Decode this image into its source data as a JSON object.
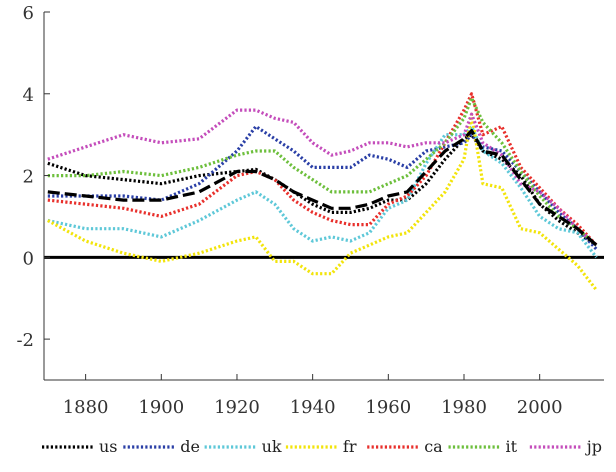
{
  "chart_data": {
    "type": "line",
    "title": "",
    "xlabel": "",
    "ylabel": "",
    "xlim": [
      1869,
      2017
    ],
    "ylim": [
      -3,
      6
    ],
    "xticks": [
      1880,
      1900,
      1920,
      1940,
      1960,
      1980,
      2000
    ],
    "yticks": [
      -2,
      0,
      2,
      4,
      6
    ],
    "grid": false,
    "legend_position": "bottom",
    "zero_line": true,
    "series": [
      {
        "name": "us",
        "color": "#000000",
        "x": [
          1870,
          1880,
          1890,
          1900,
          1910,
          1920,
          1925,
          1930,
          1935,
          1940,
          1945,
          1950,
          1955,
          1960,
          1965,
          1970,
          1975,
          1980,
          1982,
          1985,
          1990,
          1995,
          2000,
          2005,
          2010,
          2015
        ],
        "y": [
          2.3,
          2.0,
          1.9,
          1.8,
          2.0,
          2.1,
          2.15,
          1.9,
          1.6,
          1.3,
          1.1,
          1.1,
          1.2,
          1.4,
          1.4,
          1.8,
          2.4,
          2.9,
          3.0,
          2.6,
          2.4,
          2.0,
          1.3,
          0.9,
          0.6,
          0.3
        ]
      },
      {
        "name": "de",
        "color": "#2a3fa6",
        "x": [
          1870,
          1880,
          1890,
          1900,
          1910,
          1920,
          1925,
          1930,
          1935,
          1940,
          1945,
          1950,
          1955,
          1960,
          1965,
          1970,
          1975,
          1980,
          1982,
          1985,
          1990,
          1995,
          2000,
          2005,
          2010,
          2015
        ],
        "y": [
          1.5,
          1.5,
          1.5,
          1.4,
          1.8,
          2.6,
          3.2,
          2.9,
          2.6,
          2.2,
          2.2,
          2.2,
          2.5,
          2.4,
          2.2,
          2.6,
          2.7,
          2.8,
          3.0,
          2.7,
          2.6,
          2.1,
          1.6,
          1.1,
          0.7,
          0.2
        ]
      },
      {
        "name": "uk",
        "color": "#5ec8d8",
        "x": [
          1870,
          1880,
          1890,
          1900,
          1910,
          1920,
          1925,
          1930,
          1935,
          1940,
          1945,
          1950,
          1955,
          1960,
          1965,
          1970,
          1975,
          1980,
          1982,
          1985,
          1990,
          1995,
          2000,
          2005,
          2010,
          2015
        ],
        "y": [
          0.9,
          0.7,
          0.7,
          0.5,
          0.9,
          1.4,
          1.6,
          1.3,
          0.7,
          0.4,
          0.5,
          0.4,
          0.6,
          1.2,
          1.4,
          2.3,
          3.0,
          3.0,
          3.2,
          2.6,
          2.3,
          1.7,
          1.0,
          0.7,
          0.6,
          0.0
        ]
      },
      {
        "name": "fr",
        "color": "#f2e40b",
        "x": [
          1870,
          1880,
          1890,
          1900,
          1910,
          1920,
          1925,
          1930,
          1935,
          1940,
          1945,
          1950,
          1955,
          1960,
          1965,
          1970,
          1975,
          1980,
          1982,
          1985,
          1990,
          1995,
          2000,
          2005,
          2010,
          2015
        ],
        "y": [
          0.9,
          0.4,
          0.1,
          -0.1,
          0.1,
          0.4,
          0.5,
          -0.1,
          -0.1,
          -0.4,
          -0.4,
          0.1,
          0.3,
          0.5,
          0.6,
          1.1,
          1.6,
          2.4,
          3.5,
          1.8,
          1.7,
          0.7,
          0.6,
          0.2,
          -0.2,
          -0.8
        ]
      },
      {
        "name": "ca",
        "color": "#e8302c",
        "x": [
          1870,
          1880,
          1890,
          1900,
          1910,
          1920,
          1925,
          1930,
          1935,
          1940,
          1945,
          1950,
          1955,
          1960,
          1965,
          1970,
          1975,
          1980,
          1982,
          1985,
          1990,
          1995,
          2000,
          2005,
          2010,
          2015
        ],
        "y": [
          1.4,
          1.3,
          1.2,
          1.0,
          1.3,
          2.0,
          2.1,
          1.9,
          1.4,
          1.1,
          0.9,
          0.8,
          0.8,
          1.3,
          1.5,
          2.0,
          2.8,
          3.6,
          4.0,
          3.0,
          3.2,
          2.2,
          1.7,
          1.2,
          0.8,
          0.3
        ]
      },
      {
        "name": "it",
        "color": "#6dbf3c",
        "x": [
          1870,
          1880,
          1890,
          1900,
          1910,
          1920,
          1925,
          1930,
          1935,
          1940,
          1945,
          1950,
          1955,
          1960,
          1965,
          1970,
          1975,
          1980,
          1982,
          1985,
          1990,
          1995,
          2000,
          2005,
          2010,
          2015
        ],
        "y": [
          2.0,
          2.0,
          2.1,
          2.0,
          2.2,
          2.5,
          2.6,
          2.6,
          2.2,
          1.9,
          1.6,
          1.6,
          1.6,
          1.8,
          2.0,
          2.4,
          2.8,
          3.4,
          3.9,
          3.3,
          2.8,
          2.1,
          1.5,
          1.0,
          0.7,
          0.3
        ]
      },
      {
        "name": "jp",
        "color": "#c44dbb",
        "x": [
          1870,
          1880,
          1890,
          1900,
          1910,
          1920,
          1925,
          1930,
          1935,
          1940,
          1945,
          1950,
          1955,
          1960,
          1965,
          1970,
          1975,
          1980,
          1982,
          1985,
          1990,
          1995,
          2000,
          2005,
          2010,
          2015
        ],
        "y": [
          2.4,
          2.7,
          3.0,
          2.8,
          2.9,
          3.6,
          3.6,
          3.4,
          3.3,
          2.8,
          2.5,
          2.6,
          2.8,
          2.8,
          2.7,
          2.8,
          2.8,
          3.0,
          3.5,
          2.8,
          2.5,
          1.8,
          1.6,
          1.2,
          0.7,
          0.3
        ]
      },
      {
        "name": "",
        "color": "#000000",
        "style": "dashed",
        "x": [
          1870,
          1880,
          1890,
          1900,
          1910,
          1920,
          1925,
          1930,
          1935,
          1940,
          1945,
          1950,
          1955,
          1960,
          1965,
          1970,
          1975,
          1980,
          1982,
          1985,
          1990,
          1995,
          2000,
          2005,
          2010,
          2015
        ],
        "y": [
          1.6,
          1.5,
          1.4,
          1.4,
          1.6,
          2.1,
          2.1,
          1.9,
          1.6,
          1.4,
          1.2,
          1.2,
          1.3,
          1.5,
          1.6,
          2.1,
          2.6,
          2.9,
          3.1,
          2.6,
          2.5,
          1.9,
          1.3,
          1.0,
          0.7,
          0.3
        ]
      }
    ]
  }
}
